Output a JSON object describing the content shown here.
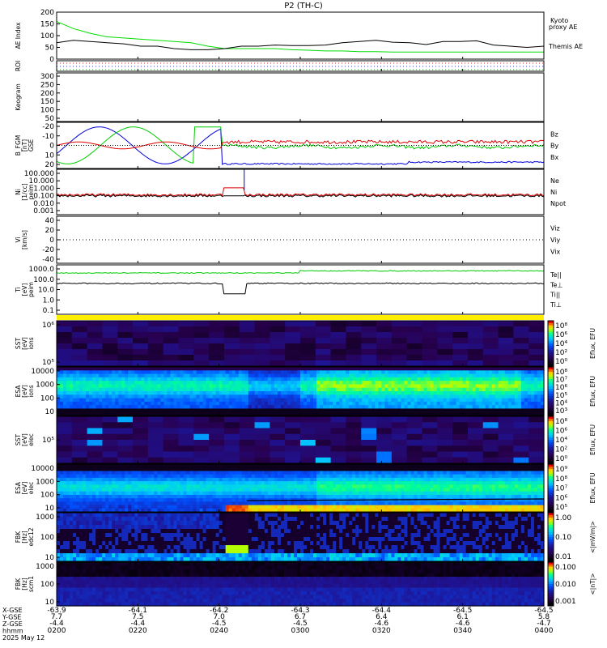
{
  "chart_data": {
    "title": "P2 (TH-C)",
    "date": "2025 May 12",
    "panels": [
      {
        "id": "ae",
        "type": "line",
        "ylabel": [
          "AE Index"
        ],
        "ylim": [
          0,
          200
        ],
        "yticks": [
          "0",
          "50",
          "100",
          "150",
          "200"
        ],
        "series": [
          {
            "name": "Kyoto proxy AE",
            "color": "#00dd00",
            "values": [
              160,
              130,
              110,
              95,
              90,
              85,
              80,
              75,
              70,
              55,
              45,
              45,
              45,
              45,
              40,
              38,
              35,
              35,
              32,
              32,
              30,
              30,
              30,
              30,
              30,
              30,
              30,
              30,
              30,
              30
            ]
          },
          {
            "name": "Themis AE",
            "color": "#000000",
            "values": [
              70,
              80,
              75,
              70,
              65,
              55,
              55,
              45,
              40,
              40,
              45,
              55,
              55,
              60,
              58,
              58,
              60,
              70,
              75,
              80,
              72,
              70,
              62,
              75,
              75,
              78,
              60,
              55,
              50,
              55
            ]
          }
        ],
        "legend_lines": [
          "Kyoto",
          "proxy AE"
        ],
        "legend2": "Themis AE"
      },
      {
        "id": "roi",
        "type": "empty",
        "ylabel": [
          "ROI"
        ],
        "yticks": []
      },
      {
        "id": "keogram",
        "type": "empty",
        "ylabel": [
          "Keogram"
        ],
        "yticks": [
          "50",
          "100",
          "150",
          "200",
          "250",
          "300"
        ]
      },
      {
        "id": "bfgm",
        "type": "line",
        "ylabel": [
          "B_FGM",
          "[nT]",
          "GSE"
        ],
        "ylim": [
          -25,
          25
        ],
        "yticks": [
          "-20",
          "-10",
          "0",
          "10",
          "20"
        ],
        "series": [
          {
            "name": "Bz",
            "color": "#dd0000"
          },
          {
            "name": "By",
            "color": "#00cc00"
          },
          {
            "name": "Bx",
            "color": "#0000dd"
          }
        ]
      },
      {
        "id": "ni",
        "type": "line",
        "ylabel": [
          "Ni",
          "[1/cc]",
          "peim"
        ],
        "yticks": [
          "100.000",
          "10.000",
          "1.000",
          "0.100",
          "0.010",
          "0.001"
        ],
        "series": [
          {
            "name": "Ne",
            "color": "#dd0000"
          },
          {
            "name": "Ni",
            "color": "#000000"
          },
          {
            "name": "Npot",
            "color": "#0000dd"
          }
        ]
      },
      {
        "id": "vi",
        "type": "line",
        "ylabel": [
          "Vi",
          "[km/s]"
        ],
        "yticks": [
          "40",
          "20",
          "0",
          "-20",
          "-40"
        ],
        "series": [
          {
            "name": "Viz",
            "color": "#dd0000"
          },
          {
            "name": "Viy",
            "color": "#00cc00"
          },
          {
            "name": "Vix",
            "color": "#0000dd"
          }
        ]
      },
      {
        "id": "ti",
        "type": "line",
        "ylabel": [
          "Ti",
          "[eV]",
          "peim"
        ],
        "yticks": [
          "1000.0",
          "100.0",
          "10.0",
          "1.0",
          "0.1"
        ],
        "series": [
          {
            "name": "Te||",
            "color": "#000000"
          },
          {
            "name": "Te⊥",
            "color": "#dd0000"
          },
          {
            "name": "Ti||",
            "color": "#00cc00"
          },
          {
            "name": "Ti⊥",
            "color": "#0000dd"
          }
        ]
      },
      {
        "id": "sst_i",
        "type": "heatmap",
        "ylabel": [
          "SST",
          "[eV]",
          "ions"
        ],
        "yticks": [
          "10⁶",
          "10⁵"
        ],
        "cbar": [
          "10⁸",
          "10⁶",
          "10⁴",
          "10²",
          "10⁰"
        ],
        "cbar_label": "Eflux, EFU"
      },
      {
        "id": "esa_i",
        "type": "heatmap",
        "ylabel": [
          "ESA",
          "[eV]",
          "ions"
        ],
        "yticks": [
          "10000",
          "1000",
          "100",
          "10"
        ],
        "cbar": [
          "10⁸",
          "10⁷",
          "10⁶",
          "10⁵",
          "10⁴",
          "10³"
        ],
        "cbar_label": "Eflux, EFU"
      },
      {
        "id": "sst_e",
        "type": "heatmap",
        "ylabel": [
          "SST",
          "[eV]",
          "elec"
        ],
        "yticks": [
          "10⁵"
        ],
        "cbar": [
          "10⁸",
          "10⁶",
          "10⁴",
          "10²",
          "10⁰"
        ],
        "cbar_label": "Eflux, EFU"
      },
      {
        "id": "esa_e",
        "type": "heatmap",
        "ylabel": [
          "ESA",
          "[eV]",
          "elec"
        ],
        "yticks": [
          "10000",
          "1000",
          "100",
          "10"
        ],
        "cbar": [
          "10⁹",
          "10⁸",
          "10⁷",
          "10⁶",
          "10⁵"
        ],
        "cbar_label": "Eflux, EFU"
      },
      {
        "id": "fbk_e",
        "type": "heatmap",
        "ylabel": [
          "FBK",
          "[Hz]",
          "edc12"
        ],
        "yticks": [
          "1000",
          "100",
          "10"
        ],
        "cbar": [
          "1.00",
          "0.10",
          "0.01"
        ],
        "cbar_label": "<|mV/m|>"
      },
      {
        "id": "fbk_b",
        "type": "heatmap",
        "ylabel": [
          "FBK",
          "[Hz]",
          "scm1"
        ],
        "yticks": [
          "1000",
          "100",
          "10"
        ],
        "cbar": [
          "0.100",
          "0.010",
          "0.001"
        ],
        "cbar_label": "<|nT|>"
      }
    ],
    "xaxis": {
      "row_labels": [
        "X-GSE",
        "Y-GSE",
        "Z-GSE",
        "hhmm",
        "2025 May 12"
      ],
      "ticks": [
        {
          "x": "-63.9",
          "y": "7.7",
          "z": "-4.4",
          "t": "0200"
        },
        {
          "x": "-64.1",
          "y": "7.5",
          "z": "-4.4",
          "t": "0220"
        },
        {
          "x": "-64.2",
          "y": "7.0",
          "z": "-4.5",
          "t": "0240"
        },
        {
          "x": "-64.3",
          "y": "6.7",
          "z": "-4.5",
          "t": "0300"
        },
        {
          "x": "-64.4",
          "y": "6.4",
          "z": "-4.6",
          "t": "0320"
        },
        {
          "x": "-64.5",
          "y": "6.1",
          "z": "-4.6",
          "t": "0340"
        },
        {
          "x": "-64.5",
          "y": "5.8",
          "z": "-4.7",
          "t": "0400"
        }
      ]
    }
  }
}
